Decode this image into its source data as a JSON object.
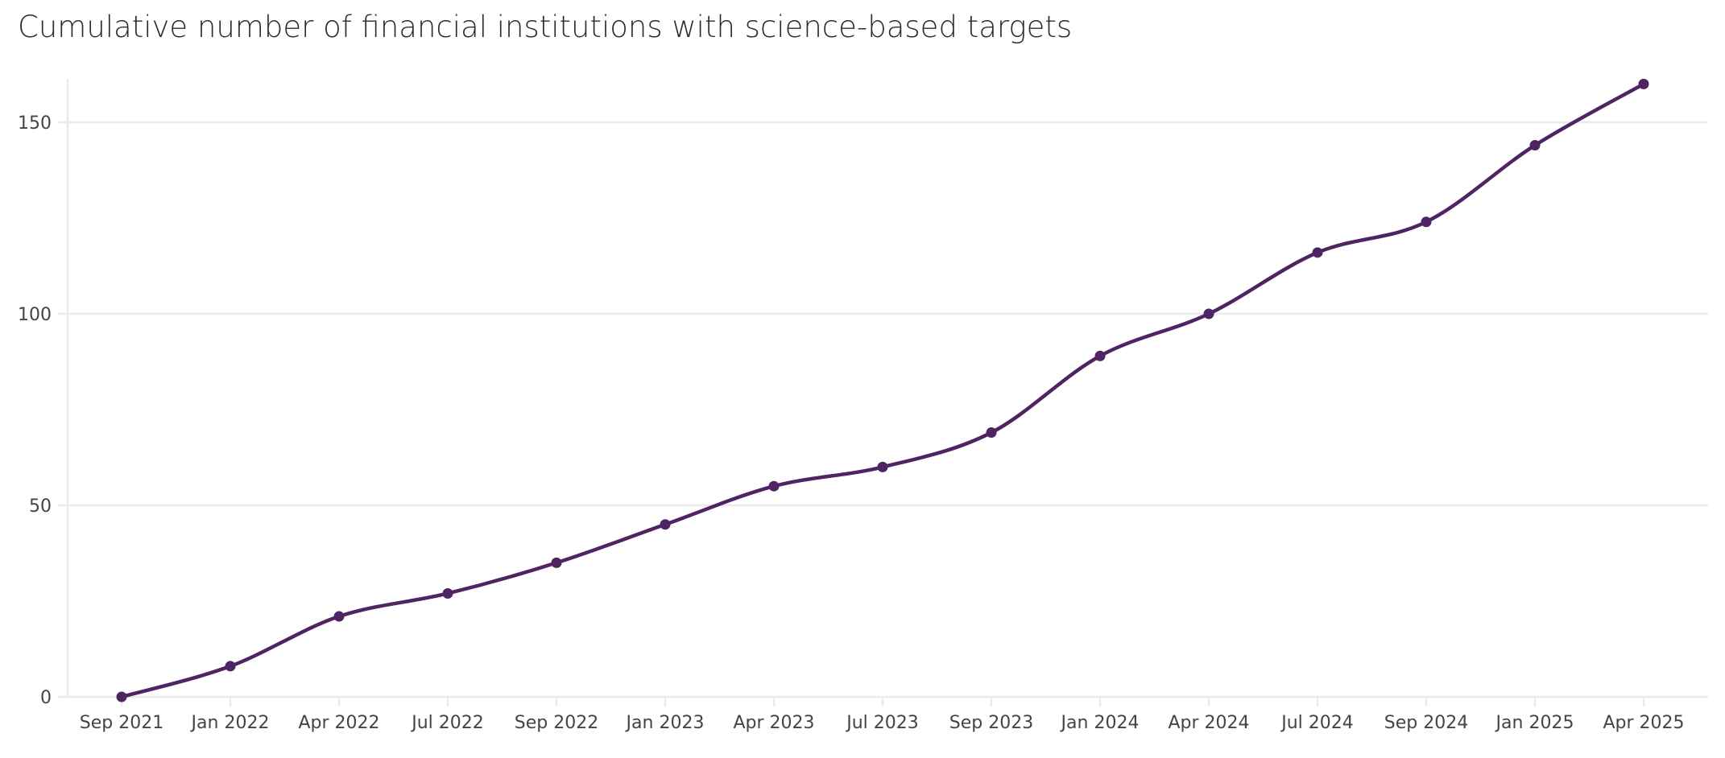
{
  "chart_data": {
    "type": "line",
    "title": "Cumulative number of financial institutions with science-based targets",
    "xlabel": "",
    "ylabel": "",
    "categories": [
      "Sep 2021",
      "Jan 2022",
      "Apr 2022",
      "Jul 2022",
      "Sep 2022",
      "Jan 2023",
      "Apr 2023",
      "Jul 2023",
      "Sep 2023",
      "Jan 2024",
      "Apr 2024",
      "Jul 2024",
      "Sep 2024",
      "Jan 2025",
      "Apr 2025"
    ],
    "values": [
      0,
      8,
      21,
      27,
      35,
      45,
      55,
      60,
      69,
      89,
      100,
      116,
      124,
      144,
      160
    ],
    "ylim": [
      0,
      160
    ],
    "yticks": [
      0,
      50,
      100,
      150
    ],
    "grid": "horizontal",
    "smoothed": true,
    "markers": true,
    "color": "#4e2462"
  }
}
